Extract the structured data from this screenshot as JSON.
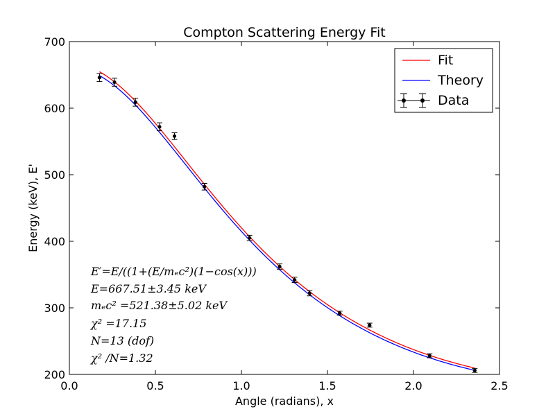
{
  "chart_data": {
    "type": "scatter",
    "title": "Compton Scattering Energy Fit",
    "xlabel": "Angle (radians), x",
    "ylabel": "Energy (keV), E'",
    "xlim": [
      0.0,
      2.5
    ],
    "ylim": [
      200,
      700
    ],
    "xticks": [
      "0.0",
      "0.5",
      "1.0",
      "1.5",
      "2.0",
      "2.5"
    ],
    "yticks": [
      "200",
      "300",
      "400",
      "500",
      "600",
      "700"
    ],
    "grid": false,
    "legend_position": "top-right",
    "legend": [
      {
        "name": "Fit",
        "color": "#ff0000",
        "kind": "line"
      },
      {
        "name": "Theory",
        "color": "#0000ff",
        "kind": "line"
      },
      {
        "name": "Data",
        "color": "#000000",
        "kind": "errorbar"
      }
    ],
    "series": [
      {
        "name": "Data",
        "color": "#000000",
        "x": [
          0.175,
          0.262,
          0.384,
          0.524,
          0.611,
          0.785,
          1.047,
          1.222,
          1.309,
          1.396,
          1.571,
          1.745,
          2.094,
          2.356
        ],
        "y": [
          646,
          639,
          609,
          572,
          558,
          482,
          405,
          362,
          342,
          322,
          292,
          274,
          228,
          206
        ],
        "x_err": [
          0.01,
          0.01,
          0.01,
          0.01,
          0.01,
          0.01,
          0.01,
          0.01,
          0.01,
          0.01,
          0.01,
          0.01,
          0.01,
          0.01
        ],
        "y_err": [
          6,
          6,
          6,
          6,
          5,
          5,
          4,
          4,
          4,
          4,
          3,
          3,
          3,
          3
        ]
      },
      {
        "name": "Fit",
        "color": "#ff0000",
        "function": "compton",
        "E": 667.51,
        "mec2": 521.38,
        "x_range": [
          0.175,
          2.356
        ]
      },
      {
        "name": "Theory",
        "color": "#0000ff",
        "function": "compton",
        "E": 661.7,
        "mec2": 511.0,
        "x_range": [
          0.175,
          2.356
        ]
      }
    ],
    "annotations": [
      "E′=E/((1+(E/mₑc²)(1−cos(x)))",
      "E=667.51±3.45 keV",
      "mₑc² =521.38±5.02 keV",
      "χ² =17.15",
      "N=13 (dof)",
      "χ² /N=1.32"
    ]
  }
}
